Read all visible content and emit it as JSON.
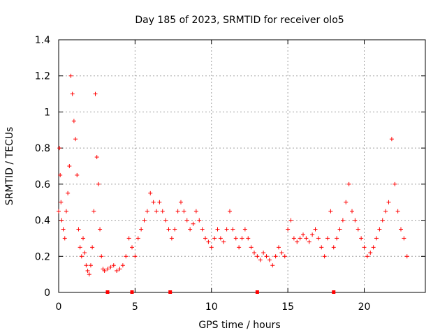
{
  "chart_data": {
    "type": "scatter",
    "title": "Day 185 of 2023, SRMTID for receiver olo5",
    "xlabel": "GPS time / hours",
    "ylabel": "SRMTID / TECUs",
    "xlim": [
      0,
      24
    ],
    "ylim": [
      0,
      1.4
    ],
    "xticks": [
      0,
      5,
      10,
      15,
      20
    ],
    "xtick_labels": [
      "0",
      "5",
      "10",
      "15",
      "20"
    ],
    "yticks": [
      0,
      0.2,
      0.4,
      0.6,
      0.8,
      1.0,
      1.2,
      1.4
    ],
    "ytick_labels": [
      "0",
      "0.2",
      "0.4",
      "0.6",
      "0.8",
      "1",
      "1.2",
      "1.4"
    ],
    "grid": true,
    "marker": "+",
    "series": [
      {
        "name": "SRMTID",
        "color": "#ff0000",
        "x": [
          0.0,
          0.05,
          0.1,
          0.15,
          0.2,
          0.3,
          0.4,
          0.5,
          0.6,
          0.7,
          0.8,
          0.9,
          1.0,
          1.1,
          1.2,
          1.3,
          1.4,
          1.5,
          1.6,
          1.7,
          1.8,
          1.9,
          2.0,
          2.1,
          2.2,
          2.3,
          2.4,
          2.5,
          2.6,
          2.7,
          2.8,
          2.9,
          3.0,
          3.2,
          3.4,
          3.6,
          3.8,
          4.0,
          4.2,
          4.4,
          4.6,
          4.8,
          5.0,
          5.2,
          5.4,
          5.6,
          5.8,
          6.0,
          6.2,
          6.4,
          6.6,
          6.8,
          7.0,
          7.2,
          7.4,
          7.6,
          7.8,
          8.0,
          8.2,
          8.4,
          8.6,
          8.8,
          9.0,
          9.2,
          9.4,
          9.6,
          9.8,
          10.0,
          10.2,
          10.4,
          10.6,
          10.8,
          11.0,
          11.2,
          11.4,
          11.6,
          11.8,
          12.0,
          12.2,
          12.4,
          12.6,
          12.8,
          13.0,
          13.2,
          13.4,
          13.6,
          13.8,
          14.0,
          14.2,
          14.4,
          14.6,
          14.8,
          15.0,
          15.2,
          15.4,
          15.6,
          15.8,
          16.0,
          16.2,
          16.4,
          16.6,
          16.8,
          17.0,
          17.2,
          17.4,
          17.6,
          17.8,
          18.0,
          18.2,
          18.4,
          18.6,
          18.8,
          19.0,
          19.2,
          19.4,
          19.6,
          19.8,
          20.0,
          20.2,
          20.4,
          20.6,
          20.8,
          21.0,
          21.2,
          21.4,
          21.6,
          21.8,
          22.0,
          22.2,
          22.4,
          22.6,
          22.8
        ],
        "y": [
          0.45,
          0.8,
          0.65,
          0.5,
          0.4,
          0.35,
          0.3,
          0.45,
          0.55,
          0.7,
          1.2,
          1.1,
          0.95,
          0.85,
          0.65,
          0.35,
          0.25,
          0.2,
          0.3,
          0.22,
          0.15,
          0.12,
          0.1,
          0.15,
          0.25,
          0.45,
          1.1,
          0.75,
          0.6,
          0.35,
          0.2,
          0.13,
          0.12,
          0.13,
          0.14,
          0.15,
          0.12,
          0.13,
          0.15,
          0.2,
          0.3,
          0.25,
          0.2,
          0.3,
          0.35,
          0.4,
          0.45,
          0.55,
          0.5,
          0.45,
          0.5,
          0.45,
          0.4,
          0.35,
          0.3,
          0.35,
          0.45,
          0.5,
          0.45,
          0.4,
          0.35,
          0.38,
          0.45,
          0.4,
          0.35,
          0.3,
          0.28,
          0.25,
          0.3,
          0.35,
          0.3,
          0.28,
          0.35,
          0.45,
          0.35,
          0.3,
          0.25,
          0.3,
          0.35,
          0.3,
          0.25,
          0.22,
          0.2,
          0.18,
          0.22,
          0.2,
          0.18,
          0.15,
          0.2,
          0.25,
          0.22,
          0.2,
          0.35,
          0.4,
          0.3,
          0.28,
          0.3,
          0.32,
          0.3,
          0.28,
          0.32,
          0.35,
          0.3,
          0.25,
          0.2,
          0.3,
          0.45,
          0.25,
          0.3,
          0.35,
          0.4,
          0.5,
          0.6,
          0.45,
          0.4,
          0.35,
          0.3,
          0.25,
          0.2,
          0.22,
          0.25,
          0.3,
          0.35,
          0.4,
          0.45,
          0.5,
          0.85,
          0.6,
          0.45,
          0.35,
          0.3,
          0.2
        ]
      }
    ],
    "annotations": {
      "data_gap_marker_hours": [
        3.2,
        4.8,
        7.3,
        13.0,
        18.0
      ]
    }
  }
}
